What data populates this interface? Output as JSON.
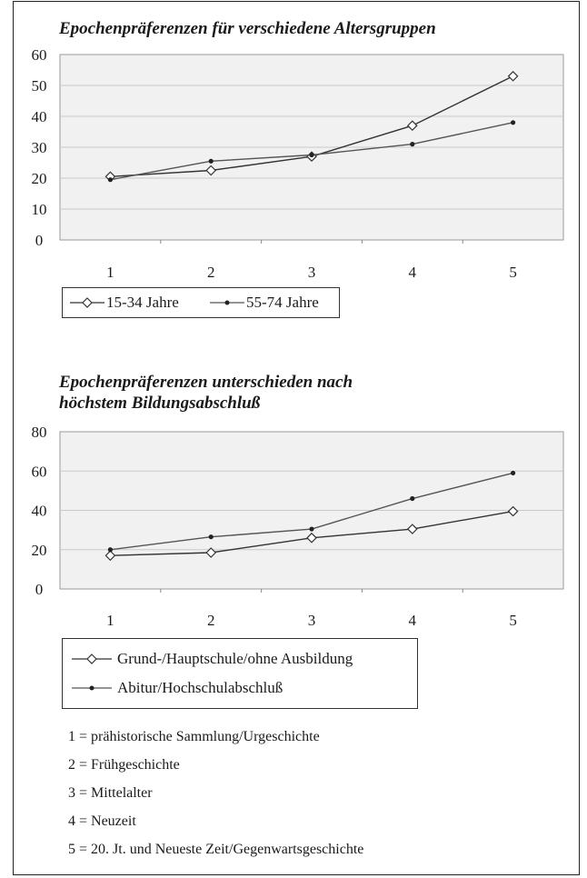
{
  "chart_data": [
    {
      "type": "line",
      "title": "Epochenpräferenzen für verschiedene Altersgruppen",
      "categories": [
        "1",
        "2",
        "3",
        "4",
        "5"
      ],
      "ylim": [
        0,
        60
      ],
      "yticks": [
        "0",
        "10",
        "20",
        "30",
        "40",
        "50",
        "60"
      ],
      "grid": true,
      "legend_position": "bottom-left",
      "series": [
        {
          "name": "15-34 Jahre",
          "marker": "diamond",
          "color": "#333333",
          "values": [
            20.5,
            22.5,
            27,
            37,
            53
          ]
        },
        {
          "name": "55-74 Jahre",
          "marker": "dot",
          "color": "#555555",
          "values": [
            19.5,
            25.5,
            27.5,
            31,
            38
          ]
        }
      ]
    },
    {
      "type": "line",
      "title": "Epochenpräferenzen unterschieden nach\nhöchstem Bildungsabschluß",
      "categories": [
        "1",
        "2",
        "3",
        "4",
        "5"
      ],
      "ylim": [
        0,
        80
      ],
      "yticks": [
        "0",
        "20",
        "40",
        "60",
        "80"
      ],
      "grid": true,
      "legend_position": "bottom-left",
      "series": [
        {
          "name": "Grund-/Hauptschule/ohne Ausbildung",
          "marker": "diamond",
          "color": "#333333",
          "values": [
            17,
            18.5,
            26,
            30.5,
            39.5
          ]
        },
        {
          "name": "Abitur/Hochschulabschluß",
          "marker": "dot",
          "color": "#555555",
          "values": [
            20,
            26.5,
            30.5,
            46,
            59
          ]
        }
      ]
    }
  ],
  "notes": [
    "1 = prähistorische Sammlung/Urgeschichte",
    "2 = Frühgeschichte",
    "3 = Mittelalter",
    "4 = Neuzeit",
    "5 = 20. Jt. und Neueste Zeit/Gegenwartsgeschichte"
  ]
}
